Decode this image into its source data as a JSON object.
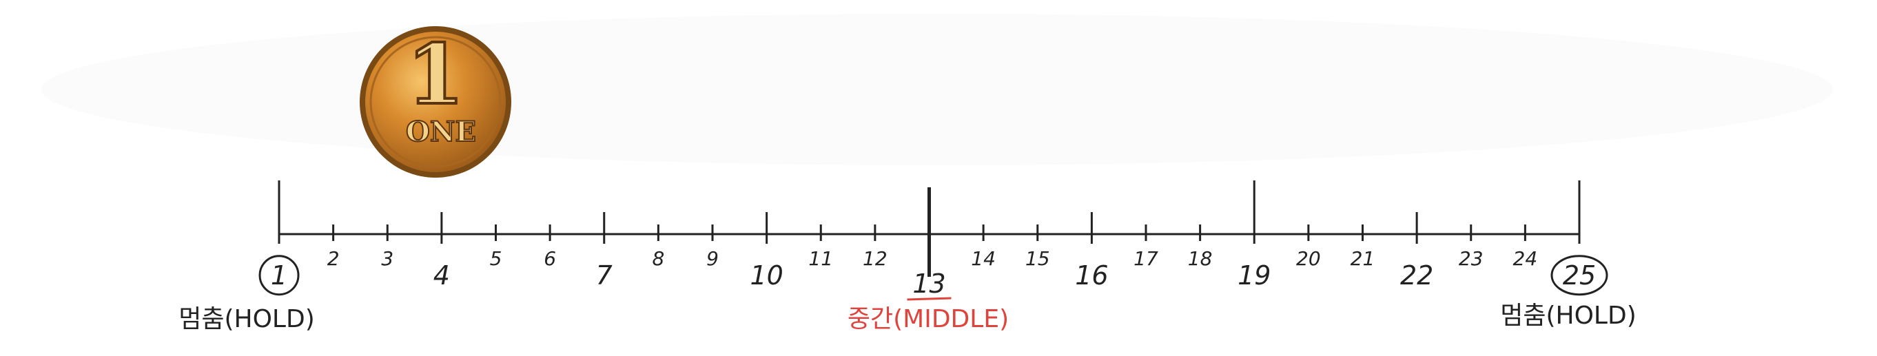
{
  "number_line": {
    "start": 1,
    "end": 25,
    "middle": 13,
    "major_ticks": [
      1,
      4,
      7,
      10,
      13,
      16,
      19,
      22,
      25
    ],
    "tall_ticks": [
      1,
      13,
      19,
      25
    ],
    "circled": [
      1,
      25
    ],
    "labels": [
      "1",
      "2",
      "3",
      "4",
      "5",
      "6",
      "7",
      "8",
      "9",
      "10",
      "11",
      "12",
      "13",
      "14",
      "15",
      "16",
      "17",
      "18",
      "19",
      "20",
      "21",
      "22",
      "23",
      "24",
      "25"
    ]
  },
  "captions": {
    "left": "멈춤(HOLD)",
    "middle": "중간(MIDDLE)",
    "right": "멈춤(HOLD)"
  },
  "coin": {
    "numeral": "1",
    "word": "ONE"
  },
  "colors": {
    "line": "#222222",
    "middle_caption": "#e0433b",
    "coin_gold": "#c9822a",
    "coin_rim": "#7a4a14"
  }
}
